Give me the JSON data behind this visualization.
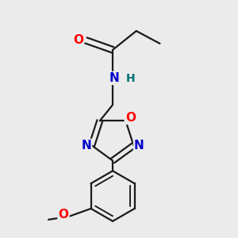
{
  "bg_color": "#ebebeb",
  "bond_color": "#1a1a1a",
  "bond_width": 1.6,
  "atom_colors": {
    "O": "#ff0000",
    "N": "#0000cc",
    "H": "#007070",
    "C": "#1a1a1a"
  }
}
